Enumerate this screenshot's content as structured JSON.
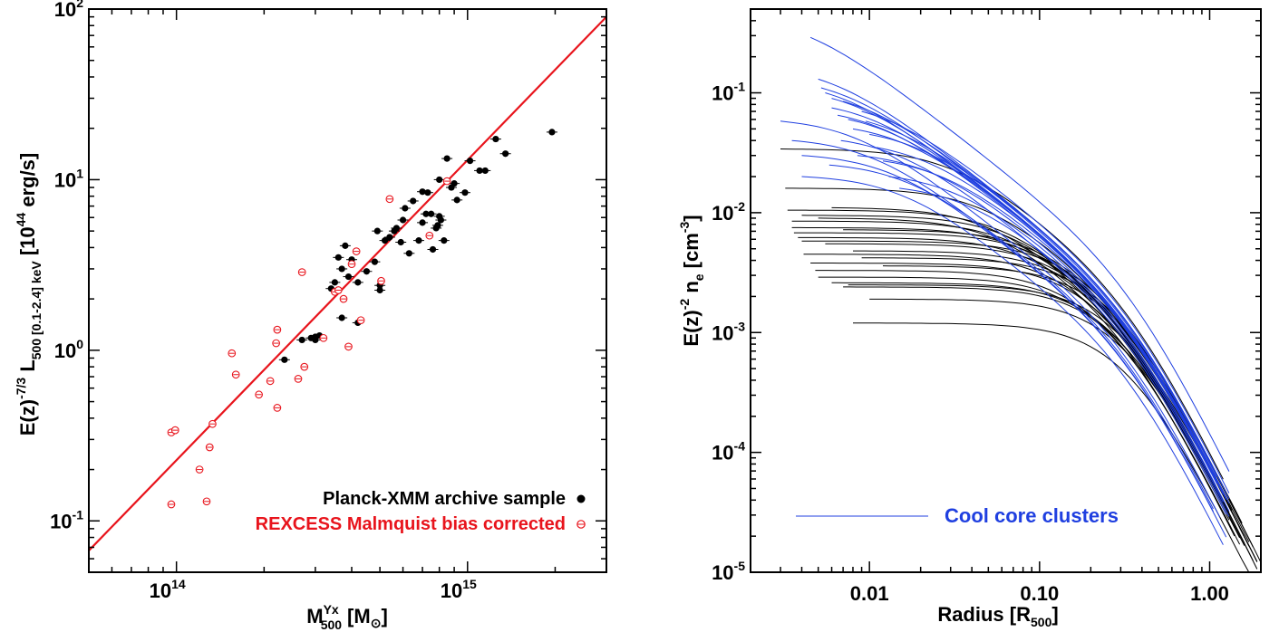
{
  "chart_data": [
    {
      "type": "scatter",
      "xlabel": "M",
      "xlabel_sup": "Yx",
      "xlabel_sub": "500",
      "xlabel_unit": "[M",
      "xlabel_unit_sub": "⊙",
      "xlabel_close": "]",
      "ylabel_parts": {
        "p1": "E(z)",
        "p1_sup": "-7/3",
        "p2": " L",
        "p2_sub": "500 [0.1-2.4] keV",
        "p3": " [10",
        "p3_sup": "44",
        "p4": " erg/s]"
      },
      "xscale": "log",
      "yscale": "log",
      "xlim": [
        50000000000000.0,
        3000000000000000.0
      ],
      "ylim": [
        0.05,
        100
      ],
      "x_ticks": [
        {
          "value": 100000000000000.0,
          "base": "10",
          "exp": "14"
        },
        {
          "value": 1000000000000000.0,
          "base": "10",
          "exp": "15"
        }
      ],
      "y_ticks": [
        {
          "value": 0.1,
          "base": "10",
          "exp": "-1"
        },
        {
          "value": 1,
          "base": "10",
          "exp": "0"
        },
        {
          "value": 10,
          "base": "10",
          "exp": "1"
        },
        {
          "value": 100,
          "base": "10",
          "exp": "2"
        }
      ],
      "fit_line": {
        "color": "#e8141c",
        "x": [
          50000000000000.0,
          3000000000000000.0
        ],
        "y": [
          0.067,
          90
        ]
      },
      "legend": {
        "placement": "bottom-right",
        "entries": [
          {
            "label": "Planck-XMM archive sample",
            "color": "#000000",
            "marker": "filled-circle"
          },
          {
            "label": "REXCESS Malmquist bias corrected",
            "color": "#e8141c",
            "marker": "open-circle"
          }
        ]
      },
      "series": [
        {
          "name": "Planck-XMM archive sample",
          "color": "#000000",
          "marker": "filled-circle",
          "points": [
            [
              270000000000000.0,
              1.15
            ],
            [
              290000000000000.0,
              1.18
            ],
            [
              300000000000000.0,
              1.15
            ],
            [
              310000000000000.0,
              1.22
            ],
            [
              235000000000000.0,
              0.88
            ],
            [
              300000000000000.0,
              1.2
            ],
            [
              340000000000000.0,
              2.3
            ],
            [
              350000000000000.0,
              2.5
            ],
            [
              360000000000000.0,
              3.5
            ],
            [
              370000000000000.0,
              3.0
            ],
            [
              380000000000000.0,
              4.1
            ],
            [
              390000000000000.0,
              2.7
            ],
            [
              400000000000000.0,
              3.4
            ],
            [
              420000000000000.0,
              2.5
            ],
            [
              450000000000000.0,
              2.9
            ],
            [
              480000000000000.0,
              3.3
            ],
            [
              500000000000000.0,
              2.25
            ],
            [
              500000000000000.0,
              2.4
            ],
            [
              490000000000000.0,
              5.0
            ],
            [
              520000000000000.0,
              4.4
            ],
            [
              540000000000000.0,
              4.6
            ],
            [
              570000000000000.0,
              5.2
            ],
            [
              590000000000000.0,
              4.3
            ],
            [
              600000000000000.0,
              5.8
            ],
            [
              630000000000000.0,
              3.7
            ],
            [
              650000000000000.0,
              7.5
            ],
            [
              680000000000000.0,
              4.4
            ],
            [
              700000000000000.0,
              5.6
            ],
            [
              730000000000000.0,
              8.4
            ],
            [
              750000000000000.0,
              6.3
            ],
            [
              760000000000000.0,
              3.9
            ],
            [
              780000000000000.0,
              5.2
            ],
            [
              800000000000000.0,
              6.1
            ],
            [
              830000000000000.0,
              4.4
            ],
            [
              800000000000000.0,
              10.0
            ],
            [
              850000000000000.0,
              13.3
            ],
            [
              880000000000000.0,
              9.0
            ],
            [
              920000000000000.0,
              7.6
            ],
            [
              980000000000000.0,
              8.4
            ],
            [
              1020000000000000.0,
              12.9
            ],
            [
              1100000000000000.0,
              11.3
            ],
            [
              1150000000000000.0,
              11.3
            ],
            [
              1250000000000000.0,
              17.3
            ],
            [
              1350000000000000.0,
              14.2
            ],
            [
              1950000000000000.0,
              19.0
            ],
            [
              370000000000000.0,
              1.55
            ],
            [
              420000000000000.0,
              1.45
            ],
            [
              560000000000000.0,
              5.0
            ],
            [
              610000000000000.0,
              6.8
            ],
            [
              720000000000000.0,
              6.3
            ],
            [
              790000000000000.0,
              5.4
            ],
            [
              700000000000000.0,
              8.5
            ],
            [
              900000000000000.0,
              9.5
            ],
            [
              810000000000000.0,
              5.8
            ]
          ]
        },
        {
          "name": "REXCESS Malmquist bias corrected",
          "color": "#e8141c",
          "marker": "open-circle",
          "points": [
            [
              96000000000000.0,
              0.33
            ],
            [
              99000000000000.0,
              0.34
            ],
            [
              96000000000000.0,
              0.125
            ],
            [
              120000000000000.0,
              0.2
            ],
            [
              127000000000000.0,
              0.13
            ],
            [
              130000000000000.0,
              0.27
            ],
            [
              133000000000000.0,
              0.37
            ],
            [
              155000000000000.0,
              0.96
            ],
            [
              160000000000000.0,
              0.72
            ],
            [
              192000000000000.0,
              0.55
            ],
            [
              210000000000000.0,
              0.66
            ],
            [
              220000000000000.0,
              1.1
            ],
            [
              222000000000000.0,
              1.32
            ],
            [
              222000000000000.0,
              0.46
            ],
            [
              262000000000000.0,
              0.68
            ],
            [
              270000000000000.0,
              2.87
            ],
            [
              275000000000000.0,
              0.8
            ],
            [
              320000000000000.0,
              1.18
            ],
            [
              350000000000000.0,
              2.2
            ],
            [
              360000000000000.0,
              2.25
            ],
            [
              375000000000000.0,
              2.0
            ],
            [
              390000000000000.0,
              1.05
            ],
            [
              400000000000000.0,
              3.2
            ],
            [
              415000000000000.0,
              3.8
            ],
            [
              430000000000000.0,
              1.5
            ],
            [
              505000000000000.0,
              2.55
            ],
            [
              540000000000000.0,
              7.7
            ],
            [
              740000000000000.0,
              4.7
            ],
            [
              850000000000000.0,
              9.8
            ]
          ]
        }
      ]
    },
    {
      "type": "line",
      "xlabel": "Radius [R",
      "xlabel_sub": "500",
      "xlabel_close": "]",
      "ylabel_parts": {
        "p1": "E(z)",
        "p1_sup": "-2",
        "p2": " n",
        "p2_sub": "e",
        "p3": " [cm",
        "p3_sup": "-3",
        "p4": "]"
      },
      "xscale": "log",
      "yscale": "log",
      "xlim": [
        0.002,
        2.0
      ],
      "ylim": [
        1e-05,
        0.5
      ],
      "x_ticks": [
        {
          "value": 0.01,
          "label": "0.01"
        },
        {
          "value": 0.1,
          "label": "0.10"
        },
        {
          "value": 1.0,
          "label": "1.00"
        }
      ],
      "y_ticks": [
        {
          "value": 1e-05,
          "base": "10",
          "exp": "-5"
        },
        {
          "value": 0.0001,
          "base": "10",
          "exp": "-4"
        },
        {
          "value": 0.001,
          "base": "10",
          "exp": "-3"
        },
        {
          "value": 0.01,
          "base": "10",
          "exp": "-2"
        },
        {
          "value": 0.1,
          "base": "10",
          "exp": "-1"
        }
      ],
      "legend": {
        "placement": "bottom-center",
        "entries": [
          {
            "label": "Cool core clusters",
            "color": "#1f3fe0",
            "line_color": "#1f3fe0"
          }
        ]
      },
      "series": [
        {
          "color": "#000000",
          "profiles": [
            {
              "r0": 0.003,
              "n0": 0.034,
              "rc": 0.03,
              "rmax": 1.2
            },
            {
              "r0": 0.0032,
              "n0": 0.016,
              "rc": 0.045,
              "rmax": 1.7
            },
            {
              "r0": 0.0033,
              "n0": 0.0105,
              "rc": 0.06,
              "rmax": 1.3
            },
            {
              "r0": 0.0035,
              "n0": 0.0075,
              "rc": 0.08,
              "rmax": 1.9
            },
            {
              "r0": 0.0036,
              "n0": 0.0068,
              "rc": 0.1,
              "rmax": 1.6
            },
            {
              "r0": 0.0038,
              "n0": 0.0062,
              "rc": 0.09,
              "rmax": 1.4
            },
            {
              "r0": 0.004,
              "n0": 0.0058,
              "rc": 0.13,
              "rmax": 2.0
            },
            {
              "r0": 0.0041,
              "n0": 0.0045,
              "rc": 0.12,
              "rmax": 1.5
            },
            {
              "r0": 0.0045,
              "n0": 0.0038,
              "rc": 0.15,
              "rmax": 1.8
            },
            {
              "r0": 0.0048,
              "n0": 0.0033,
              "rc": 0.14,
              "rmax": 1.1
            },
            {
              "r0": 0.005,
              "n0": 0.0029,
              "rc": 0.16,
              "rmax": 1.5
            },
            {
              "r0": 0.006,
              "n0": 0.0026,
              "rc": 0.2,
              "rmax": 1.3
            },
            {
              "r0": 0.007,
              "n0": 0.0024,
              "rc": 0.22,
              "rmax": 1.6
            },
            {
              "r0": 0.0075,
              "n0": 0.0025,
              "rc": 0.25,
              "rmax": 1.9
            },
            {
              "r0": 0.008,
              "n0": 0.0012,
              "rc": 0.3,
              "rmax": 1.7
            },
            {
              "r0": 0.01,
              "n0": 0.0019,
              "rc": 0.28,
              "rmax": 1.2
            },
            {
              "r0": 0.0035,
              "n0": 0.0085,
              "rc": 0.07,
              "rmax": 1.0
            },
            {
              "r0": 0.005,
              "n0": 0.009,
              "rc": 0.055,
              "rmax": 1.4
            },
            {
              "r0": 0.006,
              "n0": 0.011,
              "rc": 0.05,
              "rmax": 1.3
            },
            {
              "r0": 0.004,
              "n0": 0.0095,
              "rc": 0.065,
              "rmax": 1.6
            },
            {
              "r0": 0.007,
              "n0": 0.0072,
              "rc": 0.1,
              "rmax": 1.7
            },
            {
              "r0": 0.0055,
              "n0": 0.0055,
              "rc": 0.12,
              "rmax": 1.9
            },
            {
              "r0": 0.008,
              "n0": 0.0048,
              "rc": 0.14,
              "rmax": 1.35
            },
            {
              "r0": 0.009,
              "n0": 0.0042,
              "rc": 0.18,
              "rmax": 1.55
            },
            {
              "r0": 0.012,
              "n0": 0.0036,
              "rc": 0.2,
              "rmax": 1.8
            }
          ]
        },
        {
          "color": "#1f3fe0",
          "profiles": [
            {
              "r0": 0.0045,
              "n0": 0.29,
              "rc": 0.004,
              "rmax": 1.3
            },
            {
              "r0": 0.005,
              "n0": 0.13,
              "rc": 0.006,
              "rmax": 1.2
            },
            {
              "r0": 0.0052,
              "n0": 0.11,
              "rc": 0.007,
              "rmax": 1.1
            },
            {
              "r0": 0.006,
              "n0": 0.09,
              "rc": 0.008,
              "rmax": 1.3
            },
            {
              "r0": 0.006,
              "n0": 0.075,
              "rc": 0.01,
              "rmax": 1.0
            },
            {
              "r0": 0.0065,
              "n0": 0.065,
              "rc": 0.011,
              "rmax": 1.2
            },
            {
              "r0": 0.003,
              "n0": 0.058,
              "rc": 0.008,
              "rmax": 1.15
            },
            {
              "r0": 0.0035,
              "n0": 0.04,
              "rc": 0.01,
              "rmax": 1.05
            },
            {
              "r0": 0.004,
              "n0": 0.03,
              "rc": 0.013,
              "rmax": 1.25
            },
            {
              "r0": 0.007,
              "n0": 0.085,
              "rc": 0.009,
              "rmax": 1.3
            },
            {
              "r0": 0.0075,
              "n0": 0.06,
              "rc": 0.012,
              "rmax": 1.1
            },
            {
              "r0": 0.008,
              "n0": 0.05,
              "rc": 0.015,
              "rmax": 1.2
            },
            {
              "r0": 0.009,
              "n0": 0.07,
              "rc": 0.012,
              "rmax": 1.3
            },
            {
              "r0": 0.01,
              "n0": 0.045,
              "rc": 0.018,
              "rmax": 1.0
            },
            {
              "r0": 0.011,
              "n0": 0.035,
              "rc": 0.02,
              "rmax": 1.25
            },
            {
              "r0": 0.012,
              "n0": 0.027,
              "rc": 0.025,
              "rmax": 1.1
            },
            {
              "r0": 0.013,
              "n0": 0.02,
              "rc": 0.03,
              "rmax": 1.2
            },
            {
              "r0": 0.015,
              "n0": 0.016,
              "rc": 0.035,
              "rmax": 1.3
            },
            {
              "r0": 0.0055,
              "n0": 0.1,
              "rc": 0.007,
              "rmax": 1.15
            },
            {
              "r0": 0.0068,
              "n0": 0.04,
              "rc": 0.014,
              "rmax": 1.25
            },
            {
              "r0": 0.0058,
              "n0": 0.025,
              "rc": 0.016,
              "rmax": 1.05
            },
            {
              "r0": 0.0085,
              "n0": 0.03,
              "rc": 0.022,
              "rmax": 1.3
            },
            {
              "r0": 0.004,
              "n0": 0.02,
              "rc": 0.015,
              "rmax": 1.2
            },
            {
              "r0": 0.0095,
              "n0": 0.058,
              "rc": 0.013,
              "rmax": 1.1
            }
          ]
        }
      ]
    }
  ]
}
